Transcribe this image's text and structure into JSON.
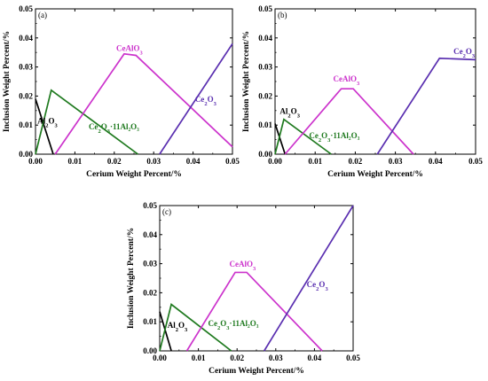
{
  "chart_data": [
    {
      "type": "line",
      "panel_label": "(a)",
      "xlabel": "Cerium Weight Percent/%",
      "ylabel": "Inclusion Weight Percent/%",
      "xlim": [
        0,
        0.05
      ],
      "ylim": [
        0,
        0.05
      ],
      "xticks": [
        "0.00",
        "0.01",
        "0.02",
        "0.03",
        "0.04",
        "0.05"
      ],
      "yticks": [
        "0.00",
        "0.01",
        "0.02",
        "0.03",
        "0.04",
        "0.05"
      ],
      "series": [
        {
          "key": "al2o3",
          "color": "#000000",
          "points": [
            [
              0.0,
              0.019
            ],
            [
              0.0045,
              0.0
            ]
          ]
        },
        {
          "key": "ce2o3_11al2o3",
          "color": "#1f7a1f",
          "points": [
            [
              0.0,
              0.0
            ],
            [
              0.004,
              0.022
            ],
            [
              0.026,
              0.0
            ]
          ]
        },
        {
          "key": "cealo3",
          "color": "#cc33cc",
          "points": [
            [
              0.005,
              0.0
            ],
            [
              0.0225,
              0.0345
            ],
            [
              0.0255,
              0.034
            ],
            [
              0.05,
              0.0025
            ]
          ]
        },
        {
          "key": "ce2o3",
          "color": "#5a2fb0",
          "points": [
            [
              0.0315,
              0.0
            ],
            [
              0.05,
              0.038
            ]
          ]
        }
      ],
      "annotations": [
        {
          "series": "cealo3",
          "color": "#cc33cc",
          "base": "CeAlO",
          "sub1": "3",
          "mid": "",
          "sub2": "",
          "tail": "",
          "x": 0.0205,
          "y": 0.0355
        },
        {
          "series": "ce2o3",
          "color": "#5a2fb0",
          "base": "Ce",
          "sub1": "2",
          "mid": "O",
          "sub2": "3",
          "tail": "",
          "x": 0.0405,
          "y": 0.018
        },
        {
          "series": "al2o3",
          "color": "#000000",
          "base": "Al",
          "sub1": "2",
          "mid": "O",
          "sub2": "3",
          "tail": "",
          "x": 0.0005,
          "y": 0.0105
        },
        {
          "series": "ce2o3_11al2o3",
          "color": "#1f7a1f",
          "base": "Ce",
          "sub1": "2",
          "mid": "O",
          "sub2": "3",
          "tail": "·11Al₂O₃",
          "x": 0.0135,
          "y": 0.0085
        }
      ]
    },
    {
      "type": "line",
      "panel_label": "(b)",
      "xlabel": "Cerium Weight Percent/%",
      "ylabel": "Inclusion Weight Percent/%",
      "xlim": [
        0,
        0.05
      ],
      "ylim": [
        0,
        0.05
      ],
      "xticks": [
        "0.00",
        "0.01",
        "0.02",
        "0.03",
        "0.04",
        "0.05"
      ],
      "yticks": [
        "0.00",
        "0.01",
        "0.02",
        "0.03",
        "0.04",
        "0.05"
      ],
      "series": [
        {
          "key": "al2o3",
          "color": "#000000",
          "points": [
            [
              0.0,
              0.0105
            ],
            [
              0.0025,
              0.0
            ]
          ]
        },
        {
          "key": "ce2o3_11al2o3",
          "color": "#1f7a1f",
          "points": [
            [
              0.0,
              0.0
            ],
            [
              0.0022,
              0.012
            ],
            [
              0.014,
              0.0
            ]
          ]
        },
        {
          "key": "cealo3",
          "color": "#cc33cc",
          "points": [
            [
              0.0025,
              0.0
            ],
            [
              0.0165,
              0.0225
            ],
            [
              0.0195,
              0.0225
            ],
            [
              0.0345,
              0.0
            ]
          ]
        },
        {
          "key": "ce2o3",
          "color": "#5a2fb0",
          "points": [
            [
              0.0255,
              0.0
            ],
            [
              0.041,
              0.033
            ],
            [
              0.05,
              0.0325
            ]
          ]
        }
      ],
      "annotations": [
        {
          "series": "cealo3",
          "color": "#cc33cc",
          "base": "CeAlO",
          "sub1": "3",
          "mid": "",
          "sub2": "",
          "tail": "",
          "x": 0.0145,
          "y": 0.025
        },
        {
          "series": "ce2o3",
          "color": "#5a2fb0",
          "base": "Ce",
          "sub1": "2",
          "mid": "O",
          "sub2": "3",
          "tail": "",
          "x": 0.0445,
          "y": 0.0345
        },
        {
          "series": "al2o3",
          "color": "#000000",
          "base": "Al",
          "sub1": "2",
          "mid": "O",
          "sub2": "3",
          "tail": "",
          "x": 0.0012,
          "y": 0.0138
        },
        {
          "series": "ce2o3_11al2o3",
          "color": "#1f7a1f",
          "base": "Ce",
          "sub1": "2",
          "mid": "O",
          "sub2": "3",
          "tail": "·11Al₂O₃",
          "x": 0.0085,
          "y": 0.0055
        }
      ]
    },
    {
      "type": "line",
      "panel_label": "(c)",
      "xlabel": "Cerium Weight Percent/%",
      "ylabel": "Inclusion Weight Percent/%",
      "xlim": [
        0,
        0.05
      ],
      "ylim": [
        0,
        0.05
      ],
      "xticks": [
        "0.00",
        "0.01",
        "0.02",
        "0.03",
        "0.04",
        "0.05"
      ],
      "yticks": [
        "0.00",
        "0.01",
        "0.02",
        "0.03",
        "0.04",
        "0.05"
      ],
      "series": [
        {
          "key": "al2o3",
          "color": "#000000",
          "points": [
            [
              0.0,
              0.0135
            ],
            [
              0.003,
              0.0
            ]
          ]
        },
        {
          "key": "ce2o3_11al2o3",
          "color": "#1f7a1f",
          "points": [
            [
              0.0,
              0.0
            ],
            [
              0.003,
              0.016
            ],
            [
              0.0185,
              0.0
            ]
          ]
        },
        {
          "key": "cealo3",
          "color": "#cc33cc",
          "points": [
            [
              0.007,
              0.0
            ],
            [
              0.0195,
              0.027
            ],
            [
              0.0225,
              0.027
            ],
            [
              0.042,
              0.0
            ]
          ]
        },
        {
          "key": "ce2o3",
          "color": "#5a2fb0",
          "points": [
            [
              0.027,
              0.0
            ],
            [
              0.05,
              0.05
            ]
          ]
        }
      ],
      "annotations": [
        {
          "series": "cealo3",
          "color": "#cc33cc",
          "base": "CeAlO",
          "sub1": "3",
          "mid": "",
          "sub2": "",
          "tail": "",
          "x": 0.018,
          "y": 0.029
        },
        {
          "series": "ce2o3",
          "color": "#5a2fb0",
          "base": "Ce",
          "sub1": "2",
          "mid": "O",
          "sub2": "3",
          "tail": "",
          "x": 0.038,
          "y": 0.022
        },
        {
          "series": "al2o3",
          "color": "#000000",
          "base": "Al",
          "sub1": "2",
          "mid": "O",
          "sub2": "3",
          "tail": "",
          "x": 0.002,
          "y": 0.008
        },
        {
          "series": "ce2o3_11al2o3",
          "color": "#1f7a1f",
          "base": "Ce",
          "sub1": "2",
          "mid": "O",
          "sub2": "3",
          "tail": "·11Al₂O₃",
          "x": 0.0125,
          "y": 0.0085
        }
      ]
    }
  ]
}
